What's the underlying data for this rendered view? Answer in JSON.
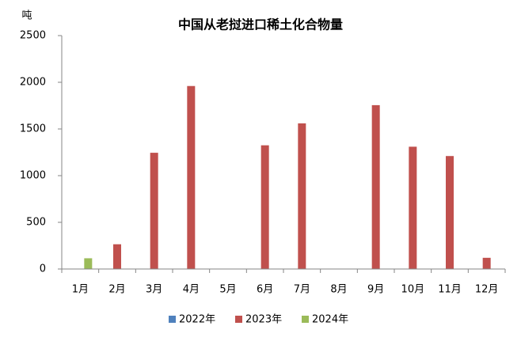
{
  "chart_data": {
    "type": "bar",
    "title": "中国从老挝进口稀土化合物量",
    "y_label": "吨",
    "categories": [
      "1月",
      "2月",
      "3月",
      "4月",
      "5月",
      "6月",
      "7月",
      "8月",
      "9月",
      "10月",
      "11月",
      "12月"
    ],
    "series": [
      {
        "name": "2022年",
        "color": "#4f81bd",
        "values": [
          null,
          null,
          null,
          null,
          null,
          null,
          null,
          null,
          null,
          null,
          null,
          null
        ]
      },
      {
        "name": "2023年",
        "color": "#c0504d",
        "values": [
          null,
          265,
          1245,
          1960,
          null,
          1325,
          1560,
          null,
          1755,
          1310,
          1210,
          120
        ]
      },
      {
        "name": "2024年",
        "color": "#9bbb59",
        "values": [
          115,
          null,
          null,
          null,
          null,
          null,
          null,
          null,
          null,
          null,
          null,
          null
        ]
      }
    ],
    "ylim": [
      0,
      2500
    ],
    "yticks": [
      0,
      500,
      1000,
      1500,
      2000,
      2500
    ],
    "legend": "bottom"
  }
}
